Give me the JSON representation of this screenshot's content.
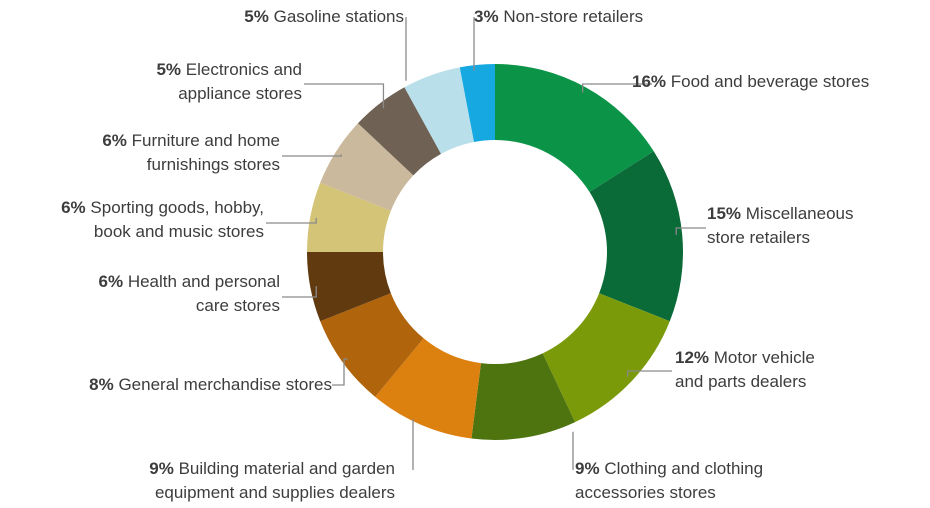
{
  "chart_data": {
    "type": "pie",
    "subtype": "donut",
    "unit": "%",
    "start": "12 o'clock, clockwise",
    "slices": [
      {
        "label": "Food and beverage stores",
        "lines": [
          "Food and beverage stores"
        ],
        "value": 16,
        "pct_text": "16%",
        "color": "#0b9447"
      },
      {
        "label": "Miscellaneous store retailers",
        "lines": [
          "Miscellaneous",
          "store retailers"
        ],
        "value": 15,
        "pct_text": "15%",
        "color": "#0a6a38"
      },
      {
        "label": "Motor vehicle and parts dealers",
        "lines": [
          "Motor vehicle",
          "and parts dealers"
        ],
        "value": 12,
        "pct_text": "12%",
        "color": "#7a9a0a"
      },
      {
        "label": "Clothing and clothing accessories stores",
        "lines": [
          "Clothing and clothing",
          "accessories stores"
        ],
        "value": 9,
        "pct_text": "9%",
        "color": "#4e7410"
      },
      {
        "label": "Building material and garden equipment and supplies dealers",
        "lines": [
          "Building material and garden",
          "equipment and supplies dealers"
        ],
        "value": 9,
        "pct_text": "9%",
        "color": "#dc8010"
      },
      {
        "label": "General merchandise stores",
        "lines": [
          "General merchandise stores"
        ],
        "value": 8,
        "pct_text": "8%",
        "color": "#b0640c"
      },
      {
        "label": "Health and personal care stores",
        "lines": [
          "Health and personal",
          "care stores"
        ],
        "value": 6,
        "pct_text": "6%",
        "color": "#613a10"
      },
      {
        "label": "Sporting goods, hobby, book and music stores",
        "lines": [
          "Sporting goods, hobby,",
          "book and music stores"
        ],
        "value": 6,
        "pct_text": "6%",
        "color": "#d3c478"
      },
      {
        "label": "Furniture and home furnishings stores",
        "lines": [
          "Furniture and home",
          "furnishings stores"
        ],
        "value": 6,
        "pct_text": "6%",
        "color": "#cbb99d"
      },
      {
        "label": "Electronics and appliance stores",
        "lines": [
          "Electronics and",
          "appliance stores"
        ],
        "value": 5,
        "pct_text": "5%",
        "color": "#6f6255"
      },
      {
        "label": "Gasoline stations",
        "lines": [
          "Gasoline stations"
        ],
        "value": 5,
        "pct_text": "5%",
        "color": "#b9e0ea"
      },
      {
        "label": "Non-store retailers",
        "lines": [
          "Non-store retailers"
        ],
        "value": 3,
        "pct_text": "3%",
        "color": "#16a9e1"
      }
    ]
  }
}
